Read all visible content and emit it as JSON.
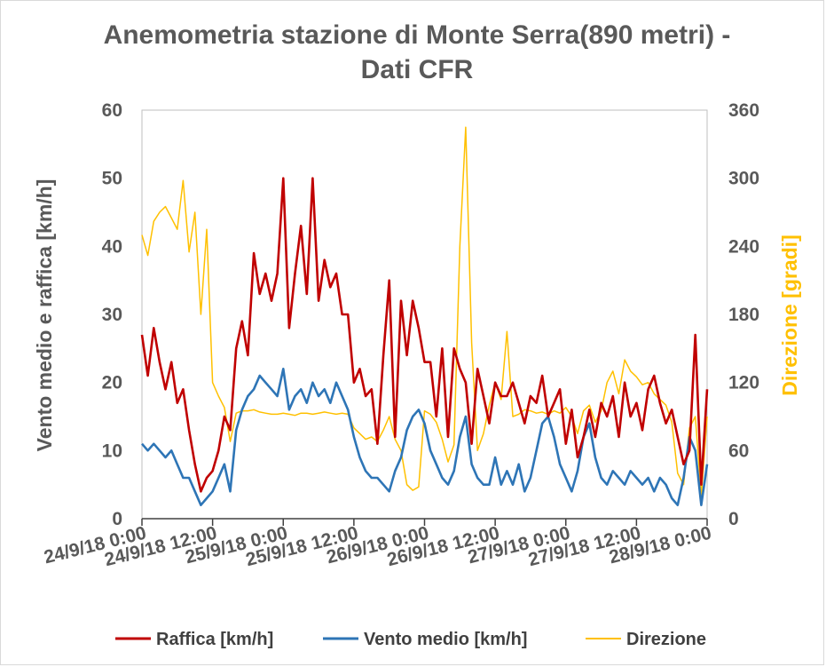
{
  "chart_data": {
    "type": "line",
    "title_lines": [
      "Anemometria stazione di Monte Serra(890 metri) -",
      "Dati CFR"
    ],
    "ylabel_left": "Vento medio e raffica [km/h]",
    "ylabel_right": "Direzione  [gradi]",
    "ylim_left": [
      0,
      60
    ],
    "ylim_right": [
      0,
      360
    ],
    "yticks_left": [
      "0",
      "10",
      "20",
      "30",
      "40",
      "50",
      "60"
    ],
    "yticks_right": [
      "0",
      "60",
      "120",
      "180",
      "240",
      "300",
      "360"
    ],
    "x_range_hours": [
      0,
      96
    ],
    "x_tick_hours": [
      0,
      12,
      24,
      36,
      48,
      60,
      72,
      84,
      96
    ],
    "x_tick_labels": [
      "24/9/18 0:00",
      "24/9/18 12:00",
      "25/9/18 0:00",
      "25/9/18 12:00",
      "26/9/18 0:00",
      "26/9/18 12:00",
      "27/9/18 0:00",
      "27/9/18 12:00",
      "28/9/18 0:00"
    ],
    "grid": false,
    "legend_position": "bottom",
    "series": [
      {
        "name": "Raffica [km/h]",
        "axis": "left",
        "color": "#c00000",
        "x_hours": [
          0,
          1,
          2,
          3,
          4,
          5,
          6,
          7,
          8,
          9,
          10,
          11,
          12,
          13,
          14,
          15,
          16,
          17,
          18,
          19,
          20,
          21,
          22,
          23,
          24,
          25,
          26,
          27,
          28,
          29,
          30,
          31,
          32,
          33,
          34,
          35,
          36,
          37,
          38,
          39,
          40,
          41,
          42,
          43,
          44,
          45,
          46,
          47,
          48,
          49,
          50,
          51,
          52,
          53,
          54,
          55,
          56,
          57,
          58,
          59,
          60,
          61,
          62,
          63,
          64,
          65,
          66,
          67,
          68,
          69,
          70,
          71,
          72,
          73,
          74,
          75,
          76,
          77,
          78,
          79,
          80,
          81,
          82,
          83,
          84,
          85,
          86,
          87,
          88,
          89,
          90,
          91,
          92,
          93,
          94,
          95,
          96
        ],
        "values": [
          27,
          21,
          28,
          23,
          19,
          23,
          17,
          19,
          13,
          8,
          4,
          6,
          7,
          10,
          15,
          13,
          25,
          29,
          24,
          39,
          33,
          36,
          32,
          36,
          50,
          28,
          36,
          43,
          33,
          50,
          32,
          38,
          34,
          36,
          30,
          30,
          20,
          22,
          18,
          19,
          11,
          24,
          35,
          12,
          32,
          24,
          32,
          28,
          23,
          23,
          15,
          25,
          12,
          25,
          22,
          20,
          11,
          22,
          18,
          14,
          20,
          18,
          18,
          20,
          17,
          14,
          18,
          17,
          21,
          15,
          17,
          19,
          11,
          16,
          9,
          12,
          16,
          12,
          17,
          15,
          18,
          12,
          20,
          15,
          17,
          13,
          19,
          21,
          17,
          14,
          16,
          12,
          8,
          10,
          27,
          5,
          19
        ]
      },
      {
        "name": "Vento medio [km/h]",
        "axis": "left",
        "color": "#2e75b6",
        "x_hours": [
          0,
          1,
          2,
          3,
          4,
          5,
          6,
          7,
          8,
          9,
          10,
          11,
          12,
          13,
          14,
          15,
          16,
          17,
          18,
          19,
          20,
          21,
          22,
          23,
          24,
          25,
          26,
          27,
          28,
          29,
          30,
          31,
          32,
          33,
          34,
          35,
          36,
          37,
          38,
          39,
          40,
          41,
          42,
          43,
          44,
          45,
          46,
          47,
          48,
          49,
          50,
          51,
          52,
          53,
          54,
          55,
          56,
          57,
          58,
          59,
          60,
          61,
          62,
          63,
          64,
          65,
          66,
          67,
          68,
          69,
          70,
          71,
          72,
          73,
          74,
          75,
          76,
          77,
          78,
          79,
          80,
          81,
          82,
          83,
          84,
          85,
          86,
          87,
          88,
          89,
          90,
          91,
          92,
          93,
          94,
          95,
          96
        ],
        "values": [
          11,
          10,
          11,
          10,
          9,
          10,
          8,
          6,
          6,
          4,
          2,
          3,
          4,
          6,
          8,
          4,
          13,
          16,
          18,
          19,
          21,
          20,
          19,
          18,
          22,
          16,
          18,
          19,
          17,
          20,
          18,
          19,
          17,
          20,
          18,
          16,
          12,
          9,
          7,
          6,
          6,
          5,
          4,
          7,
          9,
          13,
          15,
          16,
          14,
          10,
          8,
          6,
          5,
          7,
          12,
          15,
          8,
          6,
          5,
          5,
          9,
          5,
          7,
          5,
          8,
          4,
          6,
          10,
          14,
          15,
          12,
          8,
          6,
          4,
          7,
          12,
          14,
          9,
          6,
          5,
          7,
          6,
          5,
          7,
          6,
          5,
          6,
          4,
          6,
          5,
          3,
          2,
          6,
          12,
          10,
          2,
          8
        ]
      },
      {
        "name": "Direzione",
        "axis": "right",
        "color": "#ffc000",
        "x_hours": [
          0,
          1,
          2,
          3,
          4,
          5,
          6,
          7,
          8,
          9,
          10,
          11,
          12,
          13,
          14,
          15,
          16,
          17,
          18,
          19,
          20,
          21,
          22,
          23,
          24,
          25,
          26,
          27,
          28,
          29,
          30,
          31,
          32,
          33,
          34,
          35,
          36,
          37,
          38,
          39,
          40,
          41,
          42,
          43,
          44,
          45,
          46,
          47,
          48,
          49,
          50,
          51,
          52,
          53,
          54,
          55,
          56,
          57,
          58,
          59,
          60,
          61,
          62,
          63,
          64,
          65,
          66,
          67,
          68,
          69,
          70,
          71,
          72,
          73,
          74,
          75,
          76,
          77,
          78,
          79,
          80,
          81,
          82,
          83,
          84,
          85,
          86,
          87,
          88,
          89,
          90,
          91,
          92,
          93,
          94,
          95,
          96
        ],
        "values": [
          250,
          232,
          262,
          270,
          275,
          265,
          255,
          298,
          235,
          270,
          180,
          255,
          120,
          108,
          98,
          68,
          93,
          95,
          95,
          96,
          94,
          93,
          92,
          92,
          93,
          92,
          91,
          93,
          93,
          92,
          93,
          94,
          93,
          92,
          93,
          92,
          80,
          75,
          70,
          72,
          68,
          78,
          90,
          70,
          60,
          30,
          25,
          28,
          95,
          92,
          85,
          70,
          50,
          65,
          240,
          345,
          155,
          60,
          75,
          100,
          120,
          105,
          165,
          90,
          92,
          96,
          95,
          93,
          94,
          92,
          95,
          93,
          98,
          90,
          75,
          95,
          100,
          85,
          95,
          120,
          130,
          110,
          140,
          130,
          125,
          118,
          120,
          110,
          105,
          100,
          85,
          40,
          30,
          80,
          90,
          20,
          90
        ]
      }
    ]
  }
}
